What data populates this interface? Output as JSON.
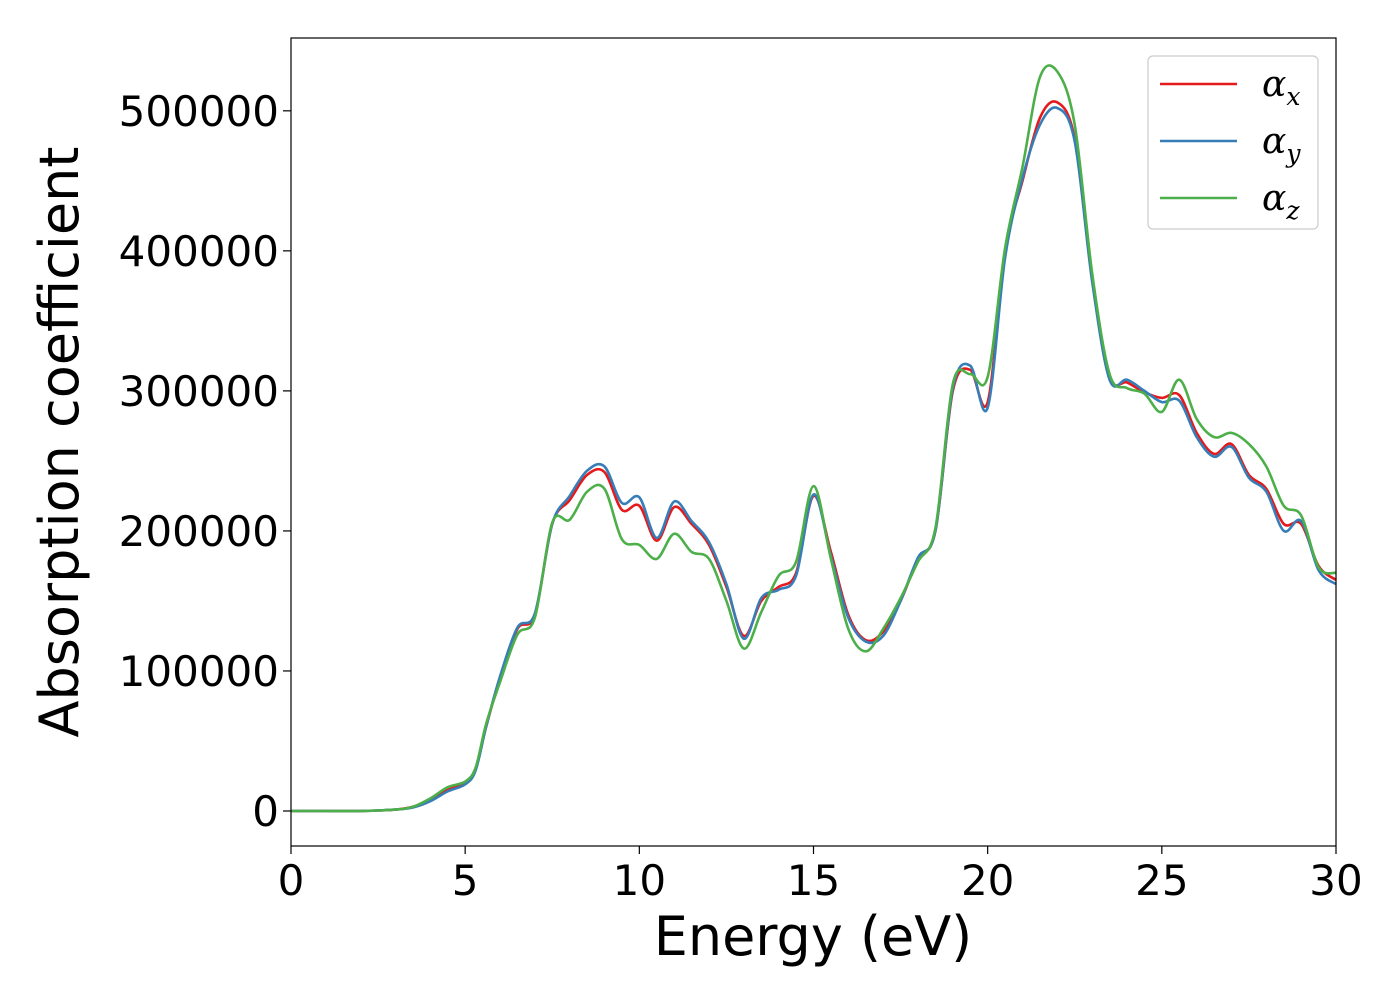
{
  "chart_data": {
    "type": "line",
    "xlabel": "Energy (eV)",
    "ylabel": "Absorption coefficient",
    "xlim": [
      0,
      30
    ],
    "ylim": [
      -25000,
      552000
    ],
    "xticks": [
      0,
      5,
      10,
      15,
      20,
      25,
      30
    ],
    "yticks": [
      0,
      100000,
      200000,
      300000,
      400000,
      500000
    ],
    "grid": false,
    "legend_position": "top-right",
    "x": [
      0,
      1,
      2,
      3,
      3.5,
      4,
      4.5,
      5,
      5.3,
      5.6,
      6,
      6.5,
      7,
      7.5,
      8,
      8.5,
      9,
      9.5,
      10,
      10.5,
      11,
      11.5,
      12,
      12.5,
      13,
      13.5,
      14,
      14.5,
      15,
      15.5,
      16,
      16.5,
      17,
      17.5,
      18,
      18.5,
      19,
      19.5,
      20,
      20.5,
      21,
      21.5,
      22,
      22.5,
      23,
      23.5,
      24,
      24.5,
      25,
      25.5,
      26,
      26.5,
      27,
      27.5,
      28,
      28.5,
      29,
      29.5,
      30
    ],
    "series": [
      {
        "name": "α",
        "subscript": "x",
        "color": "#e41a1c",
        "values": [
          0,
          0,
          0,
          1000,
          3000,
          8000,
          15000,
          20000,
          30000,
          60000,
          95000,
          130000,
          140000,
          205000,
          222000,
          240000,
          242000,
          215000,
          218000,
          193000,
          217000,
          205000,
          190000,
          160000,
          125000,
          150000,
          160000,
          170000,
          225000,
          185000,
          140000,
          122000,
          128000,
          150000,
          180000,
          200000,
          300000,
          315000,
          292000,
          400000,
          450000,
          495000,
          506000,
          480000,
          380000,
          310000,
          306000,
          299000,
          295000,
          297000,
          270000,
          255000,
          262000,
          240000,
          230000,
          205000,
          205000,
          175000,
          165000
        ]
      },
      {
        "name": "α",
        "subscript": "y",
        "color": "#377eb8",
        "values": [
          0,
          0,
          0,
          1000,
          2500,
          7000,
          14000,
          19000,
          29000,
          60000,
          96000,
          131000,
          141000,
          205000,
          225000,
          243000,
          246000,
          220000,
          224000,
          195000,
          221000,
          207000,
          192000,
          162000,
          123000,
          152000,
          158000,
          168000,
          226000,
          182000,
          138000,
          121000,
          125000,
          150000,
          181000,
          200000,
          302000,
          318000,
          288000,
          395000,
          452000,
          490000,
          502000,
          478000,
          378000,
          308000,
          308000,
          300000,
          292000,
          293000,
          267000,
          253000,
          260000,
          238000,
          228000,
          200000,
          207000,
          172000,
          162000
        ]
      },
      {
        "name": "α",
        "subscript": "z",
        "color": "#4daf4a",
        "values": [
          0,
          0,
          0,
          1000,
          3000,
          9000,
          17000,
          21000,
          31000,
          62000,
          92000,
          126000,
          138000,
          206000,
          208000,
          228000,
          230000,
          194000,
          190000,
          180000,
          198000,
          185000,
          180000,
          150000,
          116000,
          142000,
          168000,
          178000,
          232000,
          180000,
          130000,
          114000,
          130000,
          152000,
          178000,
          202000,
          305000,
          312000,
          310000,
          402000,
          460000,
          524000,
          528000,
          490000,
          384000,
          312000,
          302000,
          298000,
          285000,
          308000,
          280000,
          267000,
          270000,
          262000,
          246000,
          218000,
          211000,
          174000,
          170000
        ]
      }
    ]
  }
}
